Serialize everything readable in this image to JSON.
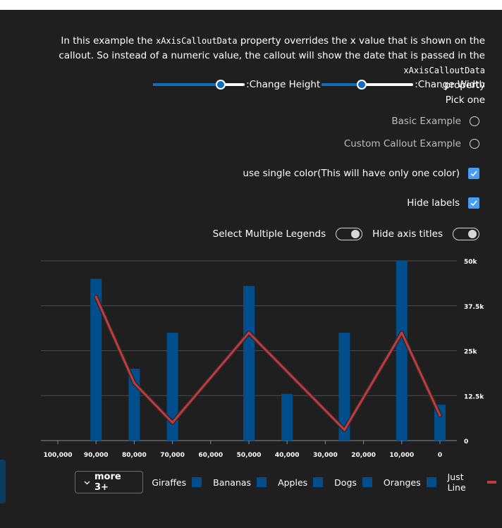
{
  "description": {
    "part1": "In this example the ",
    "code1": "xAxisCalloutData",
    "part2": " property overrides the x value that is shown on the callout. So instead of a numeric value, the callout will show the date that is passed in the ",
    "code2": "xAxisCalloutData",
    "part3": ".property"
  },
  "sliders": {
    "height_label": ":Change Height",
    "height_value": 0.74,
    "width_label": ":Change Width",
    "width_value": 0.44
  },
  "pick_one": "Pick one",
  "radios": [
    {
      "label": "Basic Example",
      "checked": false
    },
    {
      "label": "Custom Callout Example",
      "checked": false
    }
  ],
  "checkboxes": [
    {
      "label": "use single color(This will have only one color)",
      "checked": true
    },
    {
      "label": "Hide labels",
      "checked": true
    }
  ],
  "toggles": [
    {
      "label": "Select Multiple Legends",
      "on": true
    },
    {
      "label": "Hide axis titles",
      "on": true
    }
  ],
  "legend": {
    "more_label": "more 3+",
    "items": [
      {
        "name": "Giraffes",
        "kind": "bar",
        "color": "#004e8c"
      },
      {
        "name": "Bananas",
        "kind": "bar",
        "color": "#004e8c"
      },
      {
        "name": "Apples",
        "kind": "bar",
        "color": "#004e8c"
      },
      {
        "name": "Dogs",
        "kind": "bar",
        "color": "#004e8c"
      },
      {
        "name": "Oranges",
        "kind": "bar",
        "color": "#004e8c"
      },
      {
        "name": "Just Line",
        "kind": "line",
        "color": "#c5383c"
      }
    ]
  },
  "colors": {
    "bar": "#004e8c",
    "line": "#c5383c",
    "background": "#1f1f1f",
    "accent": "#0f6cbd"
  },
  "chart_data": {
    "type": "bar",
    "x_reversed": true,
    "xlim": [
      100000,
      0
    ],
    "ylim": [
      0,
      50000
    ],
    "x_ticks": [
      "100,000",
      "90,000",
      "80,000",
      "70,000",
      "60,000",
      "50,000",
      "40,000",
      "30,000",
      "20,000",
      "10,000",
      "0"
    ],
    "y_ticks": [
      "0",
      "12.5k",
      "25k",
      "37.5k",
      "50k"
    ],
    "bars": [
      {
        "x": 90000,
        "y": 45000
      },
      {
        "x": 80000,
        "y": 20000
      },
      {
        "x": 70000,
        "y": 30000
      },
      {
        "x": 50000,
        "y": 43000
      },
      {
        "x": 40000,
        "y": 13000
      },
      {
        "x": 25000,
        "y": 30000
      },
      {
        "x": 10000,
        "y": 50000
      },
      {
        "x": 0,
        "y": 10000
      }
    ],
    "line": {
      "name": "Just Line",
      "points": [
        {
          "x": 90000,
          "y": 40000
        },
        {
          "x": 80000,
          "y": 16000
        },
        {
          "x": 70000,
          "y": 5000
        },
        {
          "x": 50000,
          "y": 30000
        },
        {
          "x": 25000,
          "y": 3000
        },
        {
          "x": 10000,
          "y": 30000
        },
        {
          "x": 0,
          "y": 7000
        }
      ]
    }
  }
}
